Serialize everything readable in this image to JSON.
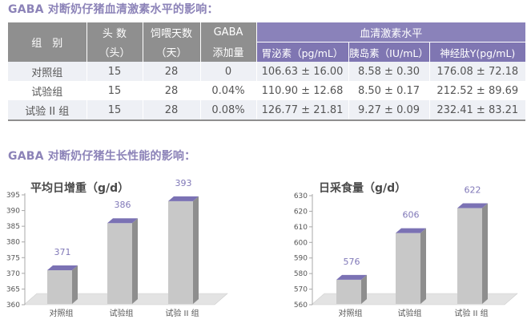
{
  "section1_title": "GABA 对断奶仔猪血清激素水平的影响：",
  "section2_title": "GABA 对断奶仔猪生长性能的影响：",
  "table": {
    "headers": {
      "group": "组　别",
      "head_count_line1": "头 数",
      "head_count_line2": "（头）",
      "feeding_days_line1": "饲喂天数",
      "feeding_days_line2": "（天）",
      "gaba_line1": "GABA",
      "gaba_line2": "添加量",
      "hormone_group": "血清激素水平",
      "hormones": [
        "胃泌素（pg/mL）",
        "胰岛素（IU/mL）",
        "神经肽Y(pg/mL)"
      ]
    },
    "rows": [
      [
        "对照组",
        "15",
        "28",
        "0",
        "106.63 ± 16.00",
        "8.58 ± 0.30",
        "176.08 ± 72.18"
      ],
      [
        "试验组",
        "15",
        "28",
        "0.04%",
        "110.90 ± 12.68",
        "8.50 ± 0.17",
        "212.52 ± 89.69"
      ],
      [
        "试验 II 组",
        "15",
        "28",
        "0.08%",
        "126.77 ± 21.81",
        "9.27 ± 0.09",
        "232.41 ± 83.21"
      ]
    ]
  },
  "colors": {
    "heading": "#8c83b8",
    "header_grey": "#8f8f8f",
    "header_violet": "#7f76b2",
    "row_shade": "#eef0f5",
    "bar_front": "#c8c8c8",
    "bar_side": "#8e8e8e",
    "bar_top": "#7b72b4",
    "value_label": "#8078b8",
    "floor": "#e3e3e3"
  },
  "chart_data": [
    {
      "type": "bar",
      "title": "平均日增重（g/d）",
      "categories": [
        "对照组",
        "试验组",
        "试验 II 组"
      ],
      "values": [
        371,
        386,
        393
      ],
      "yticks": [
        360,
        365,
        370,
        375,
        380,
        385,
        390,
        395
      ],
      "ylim": [
        360,
        395
      ],
      "style": "3d"
    },
    {
      "type": "bar",
      "title": "日采食量（g/d）",
      "categories": [
        "对照组",
        "试验组",
        "试验 II 组"
      ],
      "values": [
        576,
        606,
        622
      ],
      "yticks": [
        560,
        570,
        580,
        590,
        600,
        610,
        620,
        630
      ],
      "ylim": [
        560,
        630
      ],
      "style": "3d"
    }
  ]
}
